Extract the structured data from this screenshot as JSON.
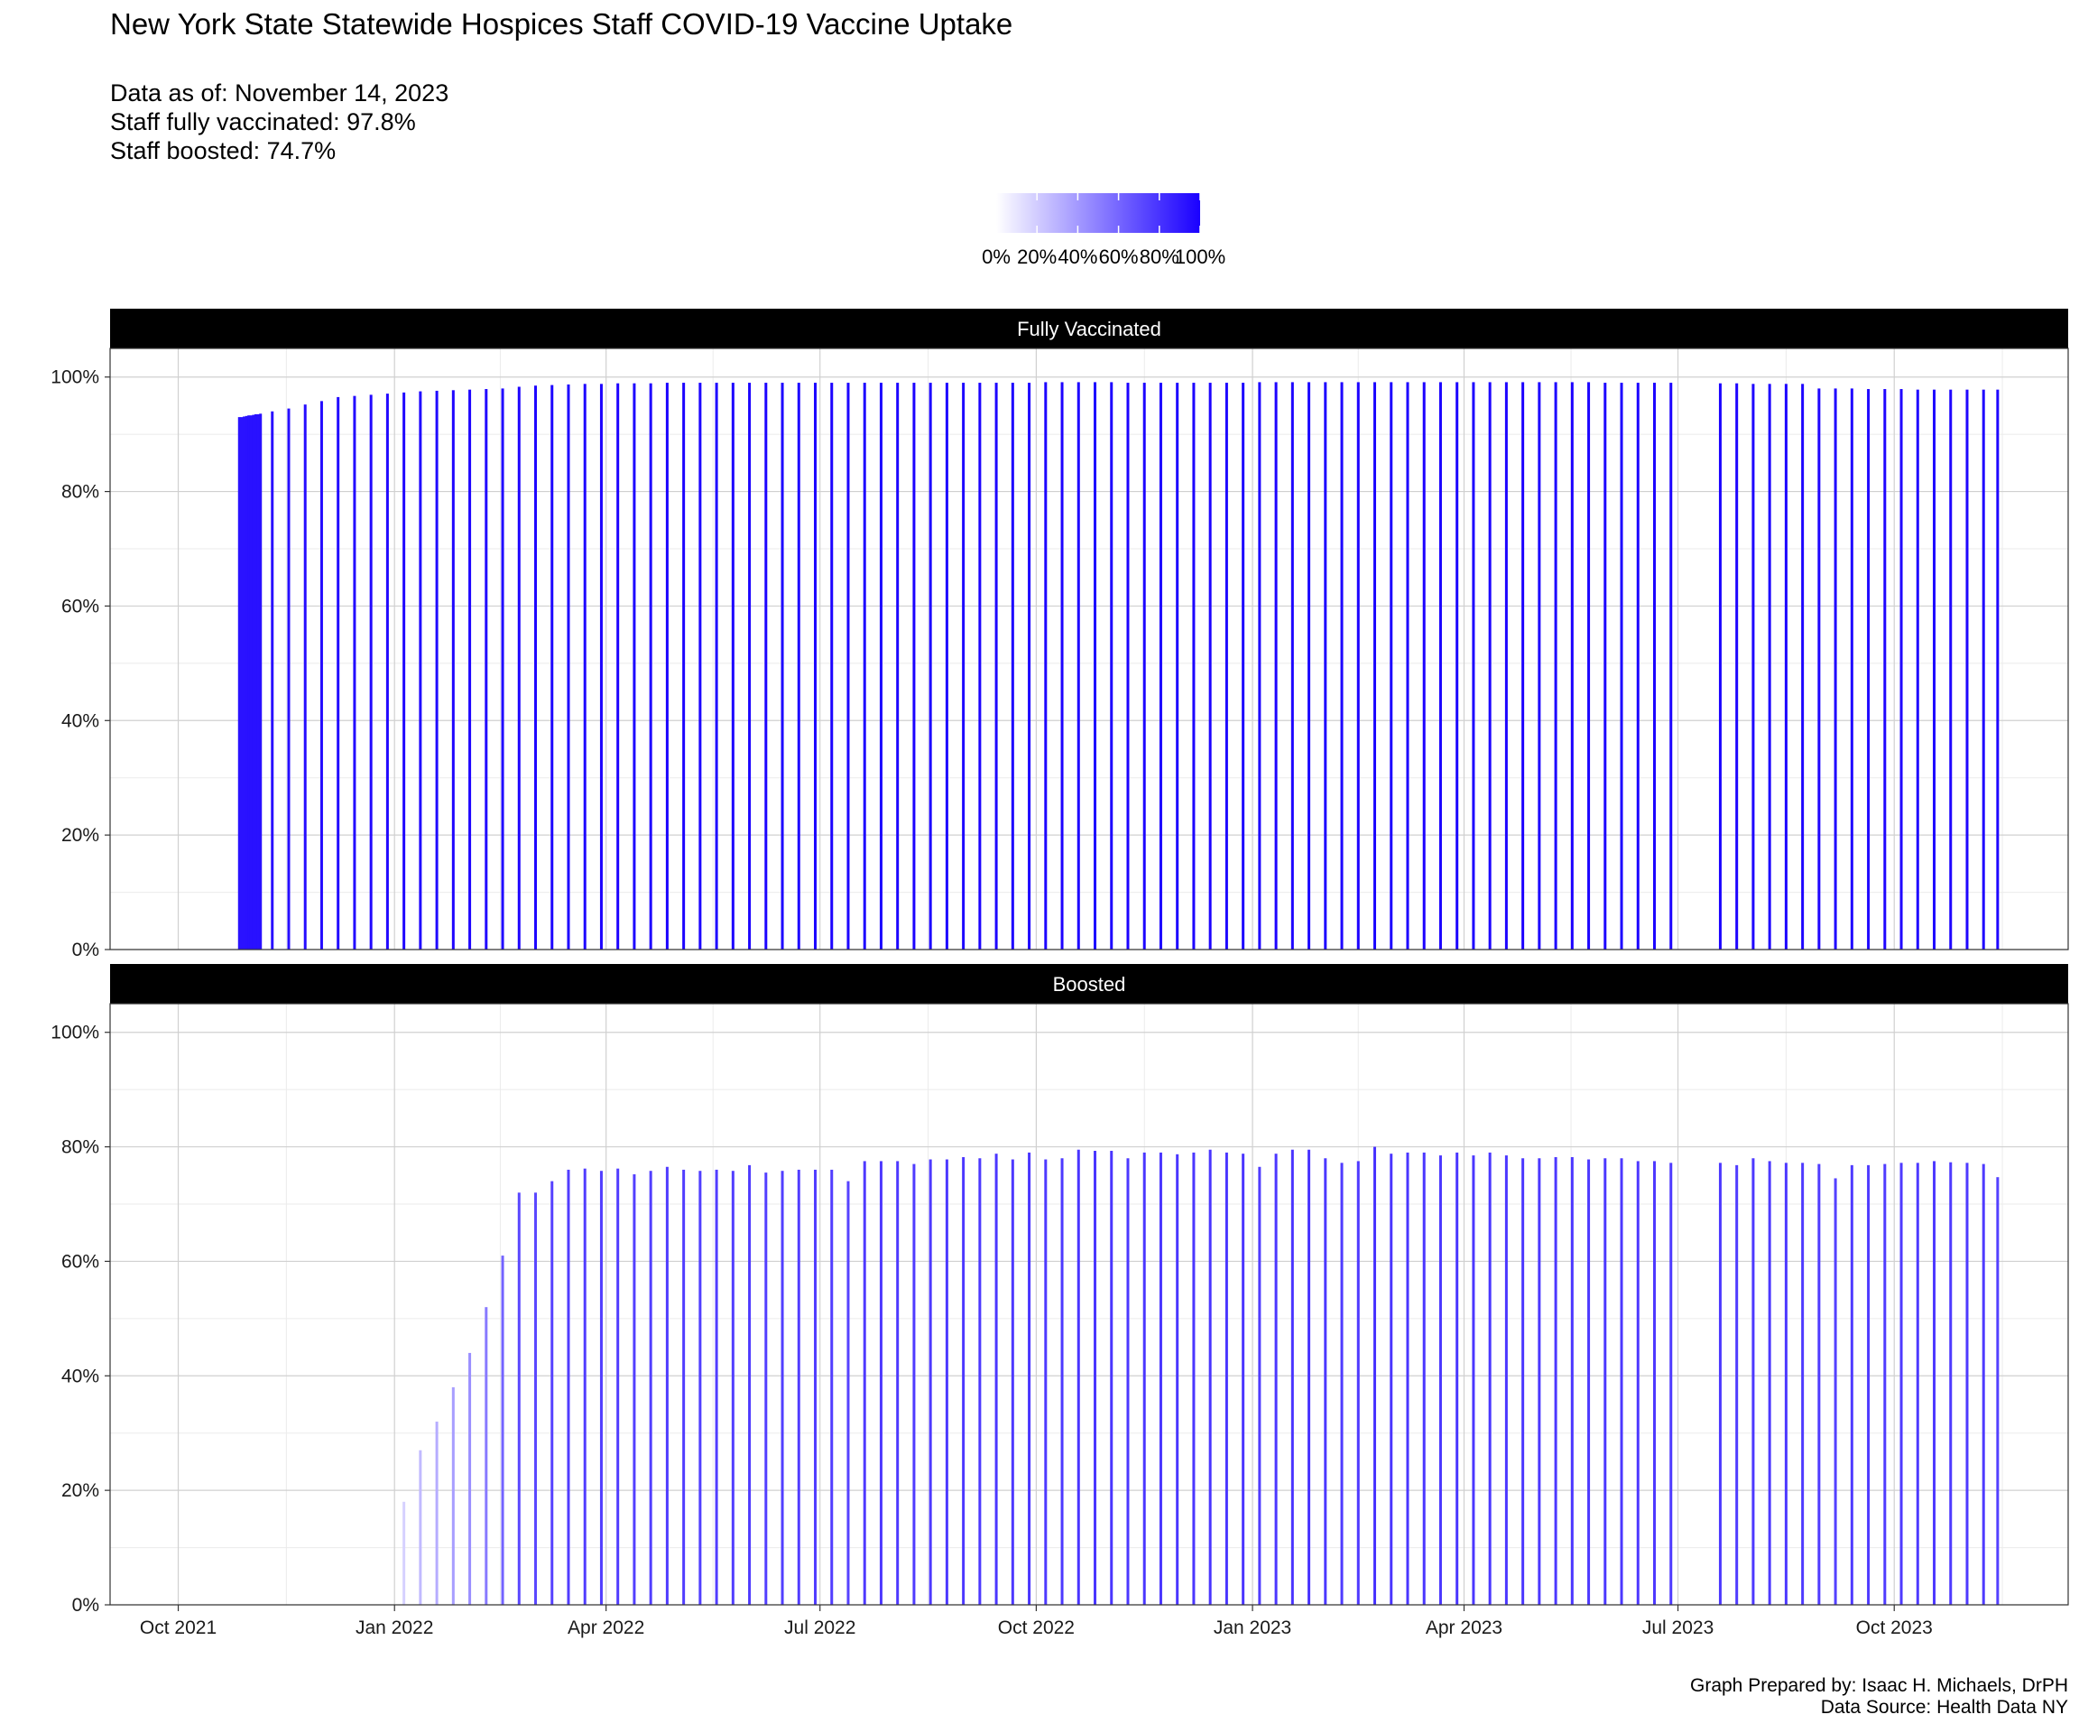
{
  "title": "New York State Statewide Hospices Staff COVID-19 Vaccine Uptake",
  "subtitle_lines": [
    "Data as of: November 14, 2023",
    "Staff fully vaccinated: 97.8%",
    "Staff boosted: 74.7%"
  ],
  "caption_lines": [
    "Graph Prepared by: Isaac H. Michaels, DrPH",
    "Data Source: Health Data NY"
  ],
  "legend": {
    "low_color": "#ffffff",
    "high_color": "#1a00ff",
    "labels": [
      "0%",
      "20%",
      "40%",
      "60%",
      "80%",
      "100%"
    ],
    "range": [
      0,
      1
    ]
  },
  "chart_data": {
    "type": "bar",
    "x_type": "date",
    "x_ticks": [
      "Oct 2021",
      "Jan 2022",
      "Apr 2022",
      "Jul 2022",
      "Oct 2022",
      "Jan 2023",
      "Apr 2023",
      "Jul 2023",
      "Oct 2023"
    ],
    "x_tick_dates": [
      "2021-10-01",
      "2022-01-01",
      "2022-04-01",
      "2022-07-01",
      "2022-10-01",
      "2023-01-01",
      "2023-04-01",
      "2023-07-01",
      "2023-10-01"
    ],
    "xlim": [
      "2021-09-02",
      "2023-12-14"
    ],
    "ylim": [
      0,
      1.05
    ],
    "y_ticks": [
      "0%",
      "20%",
      "40%",
      "60%",
      "80%",
      "100%"
    ],
    "y_tick_values": [
      0,
      0.2,
      0.4,
      0.6,
      0.8,
      1.0
    ],
    "grid": true,
    "legend_position": "top",
    "fill_scale": {
      "low": "#ffffff",
      "high": "#1a00ff"
    },
    "facets": [
      {
        "label": "Fully Vaccinated",
        "points": [
          [
            "2021-10-27",
            0.93
          ],
          [
            "2021-10-28",
            0.93
          ],
          [
            "2021-10-29",
            0.931
          ],
          [
            "2021-10-30",
            0.932
          ],
          [
            "2021-10-31",
            0.933
          ],
          [
            "2021-11-01",
            0.933
          ],
          [
            "2021-11-02",
            0.934
          ],
          [
            "2021-11-03",
            0.935
          ],
          [
            "2021-11-04",
            0.935
          ],
          [
            "2021-11-05",
            0.936
          ],
          [
            "2021-11-10",
            0.94
          ],
          [
            "2021-11-17",
            0.945
          ],
          [
            "2021-11-24",
            0.952
          ],
          [
            "2021-12-01",
            0.958
          ],
          [
            "2021-12-08",
            0.965
          ],
          [
            "2021-12-15",
            0.967
          ],
          [
            "2021-12-22",
            0.969
          ],
          [
            "2021-12-29",
            0.971
          ],
          [
            "2022-01-05",
            0.973
          ],
          [
            "2022-01-12",
            0.975
          ],
          [
            "2022-01-19",
            0.976
          ],
          [
            "2022-01-26",
            0.977
          ],
          [
            "2022-02-02",
            0.978
          ],
          [
            "2022-02-09",
            0.979
          ],
          [
            "2022-02-16",
            0.98
          ],
          [
            "2022-02-23",
            0.983
          ],
          [
            "2022-03-02",
            0.985
          ],
          [
            "2022-03-09",
            0.986
          ],
          [
            "2022-03-16",
            0.987
          ],
          [
            "2022-03-23",
            0.988
          ],
          [
            "2022-03-30",
            0.988
          ],
          [
            "2022-04-06",
            0.989
          ],
          [
            "2022-04-13",
            0.989
          ],
          [
            "2022-04-20",
            0.989
          ],
          [
            "2022-04-27",
            0.99
          ],
          [
            "2022-05-04",
            0.99
          ],
          [
            "2022-05-11",
            0.99
          ],
          [
            "2022-05-18",
            0.99
          ],
          [
            "2022-05-25",
            0.99
          ],
          [
            "2022-06-01",
            0.99
          ],
          [
            "2022-06-08",
            0.99
          ],
          [
            "2022-06-15",
            0.99
          ],
          [
            "2022-06-22",
            0.99
          ],
          [
            "2022-06-29",
            0.99
          ],
          [
            "2022-07-06",
            0.99
          ],
          [
            "2022-07-13",
            0.99
          ],
          [
            "2022-07-20",
            0.99
          ],
          [
            "2022-07-27",
            0.99
          ],
          [
            "2022-08-03",
            0.99
          ],
          [
            "2022-08-10",
            0.99
          ],
          [
            "2022-08-17",
            0.99
          ],
          [
            "2022-08-24",
            0.99
          ],
          [
            "2022-08-31",
            0.99
          ],
          [
            "2022-09-07",
            0.99
          ],
          [
            "2022-09-14",
            0.99
          ],
          [
            "2022-09-21",
            0.99
          ],
          [
            "2022-09-28",
            0.99
          ],
          [
            "2022-10-05",
            0.991
          ],
          [
            "2022-10-12",
            0.991
          ],
          [
            "2022-10-19",
            0.991
          ],
          [
            "2022-10-26",
            0.991
          ],
          [
            "2022-11-02",
            0.991
          ],
          [
            "2022-11-09",
            0.99
          ],
          [
            "2022-11-16",
            0.99
          ],
          [
            "2022-11-23",
            0.99
          ],
          [
            "2022-11-30",
            0.99
          ],
          [
            "2022-12-07",
            0.99
          ],
          [
            "2022-12-14",
            0.99
          ],
          [
            "2022-12-21",
            0.99
          ],
          [
            "2022-12-28",
            0.99
          ],
          [
            "2023-01-04",
            0.991
          ],
          [
            "2023-01-11",
            0.991
          ],
          [
            "2023-01-18",
            0.991
          ],
          [
            "2023-01-25",
            0.991
          ],
          [
            "2023-02-01",
            0.991
          ],
          [
            "2023-02-08",
            0.991
          ],
          [
            "2023-02-15",
            0.991
          ],
          [
            "2023-02-22",
            0.991
          ],
          [
            "2023-03-01",
            0.991
          ],
          [
            "2023-03-08",
            0.991
          ],
          [
            "2023-03-15",
            0.991
          ],
          [
            "2023-03-22",
            0.991
          ],
          [
            "2023-03-29",
            0.991
          ],
          [
            "2023-04-05",
            0.991
          ],
          [
            "2023-04-12",
            0.991
          ],
          [
            "2023-04-19",
            0.991
          ],
          [
            "2023-04-26",
            0.991
          ],
          [
            "2023-05-03",
            0.991
          ],
          [
            "2023-05-10",
            0.991
          ],
          [
            "2023-05-17",
            0.991
          ],
          [
            "2023-05-24",
            0.991
          ],
          [
            "2023-05-31",
            0.99
          ],
          [
            "2023-06-07",
            0.99
          ],
          [
            "2023-06-14",
            0.99
          ],
          [
            "2023-06-21",
            0.99
          ],
          [
            "2023-06-28",
            0.99
          ],
          [
            "2023-07-19",
            0.989
          ],
          [
            "2023-07-26",
            0.989
          ],
          [
            "2023-08-02",
            0.988
          ],
          [
            "2023-08-09",
            0.988
          ],
          [
            "2023-08-16",
            0.988
          ],
          [
            "2023-08-23",
            0.988
          ],
          [
            "2023-08-30",
            0.98
          ],
          [
            "2023-09-06",
            0.98
          ],
          [
            "2023-09-13",
            0.98
          ],
          [
            "2023-09-20",
            0.979
          ],
          [
            "2023-09-27",
            0.979
          ],
          [
            "2023-10-04",
            0.979
          ],
          [
            "2023-10-11",
            0.978
          ],
          [
            "2023-10-18",
            0.978
          ],
          [
            "2023-10-25",
            0.978
          ],
          [
            "2023-11-01",
            0.978
          ],
          [
            "2023-11-08",
            0.978
          ],
          [
            "2023-11-14",
            0.978
          ]
        ]
      },
      {
        "label": "Boosted",
        "points": [
          [
            "2022-01-05",
            0.18
          ],
          [
            "2022-01-12",
            0.27
          ],
          [
            "2022-01-19",
            0.32
          ],
          [
            "2022-01-26",
            0.38
          ],
          [
            "2022-02-02",
            0.44
          ],
          [
            "2022-02-09",
            0.52
          ],
          [
            "2022-02-16",
            0.61
          ],
          [
            "2022-02-23",
            0.72
          ],
          [
            "2022-03-02",
            0.72
          ],
          [
            "2022-03-09",
            0.74
          ],
          [
            "2022-03-16",
            0.76
          ],
          [
            "2022-03-23",
            0.762
          ],
          [
            "2022-03-30",
            0.758
          ],
          [
            "2022-04-06",
            0.762
          ],
          [
            "2022-04-13",
            0.752
          ],
          [
            "2022-04-20",
            0.758
          ],
          [
            "2022-04-27",
            0.765
          ],
          [
            "2022-05-04",
            0.76
          ],
          [
            "2022-05-11",
            0.758
          ],
          [
            "2022-05-18",
            0.76
          ],
          [
            "2022-05-25",
            0.758
          ],
          [
            "2022-06-01",
            0.768
          ],
          [
            "2022-06-08",
            0.755
          ],
          [
            "2022-06-15",
            0.758
          ],
          [
            "2022-06-22",
            0.76
          ],
          [
            "2022-06-29",
            0.76
          ],
          [
            "2022-07-06",
            0.76
          ],
          [
            "2022-07-13",
            0.74
          ],
          [
            "2022-07-20",
            0.775
          ],
          [
            "2022-07-27",
            0.775
          ],
          [
            "2022-08-03",
            0.775
          ],
          [
            "2022-08-10",
            0.77
          ],
          [
            "2022-08-17",
            0.778
          ],
          [
            "2022-08-24",
            0.778
          ],
          [
            "2022-08-31",
            0.782
          ],
          [
            "2022-09-07",
            0.78
          ],
          [
            "2022-09-14",
            0.788
          ],
          [
            "2022-09-21",
            0.778
          ],
          [
            "2022-09-28",
            0.79
          ],
          [
            "2022-10-05",
            0.778
          ],
          [
            "2022-10-12",
            0.78
          ],
          [
            "2022-10-19",
            0.795
          ],
          [
            "2022-10-26",
            0.793
          ],
          [
            "2022-11-02",
            0.793
          ],
          [
            "2022-11-09",
            0.78
          ],
          [
            "2022-11-16",
            0.79
          ],
          [
            "2022-11-23",
            0.79
          ],
          [
            "2022-11-30",
            0.787
          ],
          [
            "2022-12-07",
            0.79
          ],
          [
            "2022-12-14",
            0.795
          ],
          [
            "2022-12-21",
            0.79
          ],
          [
            "2022-12-28",
            0.788
          ],
          [
            "2023-01-04",
            0.765
          ],
          [
            "2023-01-11",
            0.788
          ],
          [
            "2023-01-18",
            0.795
          ],
          [
            "2023-01-25",
            0.795
          ],
          [
            "2023-02-01",
            0.78
          ],
          [
            "2023-02-08",
            0.772
          ],
          [
            "2023-02-15",
            0.775
          ],
          [
            "2023-02-22",
            0.8
          ],
          [
            "2023-03-01",
            0.788
          ],
          [
            "2023-03-08",
            0.79
          ],
          [
            "2023-03-15",
            0.79
          ],
          [
            "2023-03-22",
            0.785
          ],
          [
            "2023-03-29",
            0.79
          ],
          [
            "2023-04-05",
            0.785
          ],
          [
            "2023-04-12",
            0.79
          ],
          [
            "2023-04-19",
            0.785
          ],
          [
            "2023-04-26",
            0.78
          ],
          [
            "2023-05-03",
            0.78
          ],
          [
            "2023-05-10",
            0.782
          ],
          [
            "2023-05-17",
            0.782
          ],
          [
            "2023-05-24",
            0.778
          ],
          [
            "2023-05-31",
            0.78
          ],
          [
            "2023-06-07",
            0.78
          ],
          [
            "2023-06-14",
            0.775
          ],
          [
            "2023-06-21",
            0.775
          ],
          [
            "2023-06-28",
            0.772
          ],
          [
            "2023-07-19",
            0.772
          ],
          [
            "2023-07-26",
            0.768
          ],
          [
            "2023-08-02",
            0.78
          ],
          [
            "2023-08-09",
            0.775
          ],
          [
            "2023-08-16",
            0.772
          ],
          [
            "2023-08-23",
            0.772
          ],
          [
            "2023-08-30",
            0.77
          ],
          [
            "2023-09-06",
            0.745
          ],
          [
            "2023-09-13",
            0.768
          ],
          [
            "2023-09-20",
            0.768
          ],
          [
            "2023-09-27",
            0.77
          ],
          [
            "2023-10-04",
            0.772
          ],
          [
            "2023-10-11",
            0.772
          ],
          [
            "2023-10-18",
            0.775
          ],
          [
            "2023-10-25",
            0.773
          ],
          [
            "2023-11-01",
            0.772
          ],
          [
            "2023-11-08",
            0.77
          ],
          [
            "2023-11-14",
            0.747
          ]
        ]
      }
    ]
  }
}
